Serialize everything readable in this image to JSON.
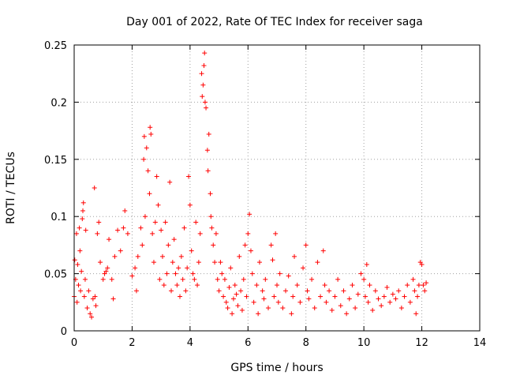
{
  "chart_data": {
    "type": "scatter",
    "title": "Day 001 of 2022, Rate Of TEC Index for receiver saga",
    "xlabel": "GPS time / hours",
    "ylabel": "ROTI / TECUs",
    "xlim": [
      0,
      14
    ],
    "ylim": [
      0,
      0.25
    ],
    "x_ticks": [
      0,
      2,
      4,
      6,
      8,
      10,
      12,
      14
    ],
    "x_tick_labels": [
      "0",
      "2",
      "4",
      "6",
      "8",
      "10",
      "12",
      "14"
    ],
    "y_ticks": [
      0,
      0.05,
      0.1,
      0.15,
      0.2,
      0.25
    ],
    "y_tick_labels": [
      "0",
      "0.05",
      "0.1",
      "0.15",
      "0.2",
      "0.25"
    ],
    "grid": true,
    "marker": "+",
    "series": [
      {
        "name": "ROTI",
        "color": "#ff0000",
        "points": [
          [
            0.0,
            0.03
          ],
          [
            0.02,
            0.062
          ],
          [
            0.05,
            0.045
          ],
          [
            0.08,
            0.085
          ],
          [
            0.1,
            0.025
          ],
          [
            0.12,
            0.058
          ],
          [
            0.15,
            0.04
          ],
          [
            0.18,
            0.09
          ],
          [
            0.2,
            0.07
          ],
          [
            0.22,
            0.035
          ],
          [
            0.25,
            0.052
          ],
          [
            0.28,
            0.098
          ],
          [
            0.3,
            0.105
          ],
          [
            0.32,
            0.112
          ],
          [
            0.35,
            0.03
          ],
          [
            0.38,
            0.045
          ],
          [
            0.4,
            0.088
          ],
          [
            0.45,
            0.02
          ],
          [
            0.5,
            0.035
          ],
          [
            0.55,
            0.015
          ],
          [
            0.6,
            0.012
          ],
          [
            0.65,
            0.028
          ],
          [
            0.7,
            0.125
          ],
          [
            0.72,
            0.03
          ],
          [
            0.75,
            0.022
          ],
          [
            0.8,
            0.085
          ],
          [
            0.85,
            0.095
          ],
          [
            0.9,
            0.06
          ],
          [
            1.0,
            0.045
          ],
          [
            1.05,
            0.05
          ],
          [
            1.1,
            0.052
          ],
          [
            1.15,
            0.055
          ],
          [
            1.2,
            0.08
          ],
          [
            1.3,
            0.045
          ],
          [
            1.35,
            0.028
          ],
          [
            1.4,
            0.065
          ],
          [
            1.5,
            0.088
          ],
          [
            1.6,
            0.07
          ],
          [
            1.7,
            0.09
          ],
          [
            1.75,
            0.105
          ],
          [
            1.85,
            0.085
          ],
          [
            2.0,
            0.048
          ],
          [
            2.1,
            0.055
          ],
          [
            2.15,
            0.035
          ],
          [
            2.2,
            0.065
          ],
          [
            2.3,
            0.09
          ],
          [
            2.35,
            0.075
          ],
          [
            2.4,
            0.15
          ],
          [
            2.42,
            0.17
          ],
          [
            2.45,
            0.1
          ],
          [
            2.5,
            0.16
          ],
          [
            2.55,
            0.14
          ],
          [
            2.6,
            0.12
          ],
          [
            2.62,
            0.178
          ],
          [
            2.65,
            0.172
          ],
          [
            2.7,
            0.085
          ],
          [
            2.75,
            0.06
          ],
          [
            2.8,
            0.095
          ],
          [
            2.85,
            0.135
          ],
          [
            2.9,
            0.11
          ],
          [
            2.95,
            0.045
          ],
          [
            3.0,
            0.088
          ],
          [
            3.05,
            0.065
          ],
          [
            3.1,
            0.04
          ],
          [
            3.15,
            0.095
          ],
          [
            3.2,
            0.05
          ],
          [
            3.25,
            0.075
          ],
          [
            3.3,
            0.13
          ],
          [
            3.35,
            0.035
          ],
          [
            3.4,
            0.06
          ],
          [
            3.45,
            0.08
          ],
          [
            3.5,
            0.05
          ],
          [
            3.55,
            0.04
          ],
          [
            3.6,
            0.055
          ],
          [
            3.65,
            0.03
          ],
          [
            3.7,
            0.065
          ],
          [
            3.75,
            0.045
          ],
          [
            3.8,
            0.09
          ],
          [
            3.85,
            0.035
          ],
          [
            3.9,
            0.055
          ],
          [
            3.95,
            0.135
          ],
          [
            4.0,
            0.11
          ],
          [
            4.05,
            0.07
          ],
          [
            4.1,
            0.05
          ],
          [
            4.15,
            0.045
          ],
          [
            4.2,
            0.095
          ],
          [
            4.25,
            0.04
          ],
          [
            4.3,
            0.06
          ],
          [
            4.35,
            0.085
          ],
          [
            4.4,
            0.225
          ],
          [
            4.42,
            0.205
          ],
          [
            4.45,
            0.215
          ],
          [
            4.48,
            0.232
          ],
          [
            4.5,
            0.243
          ],
          [
            4.52,
            0.2
          ],
          [
            4.55,
            0.195
          ],
          [
            4.6,
            0.158
          ],
          [
            4.62,
            0.14
          ],
          [
            4.65,
            0.172
          ],
          [
            4.7,
            0.12
          ],
          [
            4.72,
            0.1
          ],
          [
            4.75,
            0.09
          ],
          [
            4.8,
            0.075
          ],
          [
            4.85,
            0.06
          ],
          [
            4.9,
            0.085
          ],
          [
            4.95,
            0.045
          ],
          [
            5.0,
            0.035
          ],
          [
            5.05,
            0.06
          ],
          [
            5.1,
            0.05
          ],
          [
            5.15,
            0.03
          ],
          [
            5.2,
            0.045
          ],
          [
            5.25,
            0.025
          ],
          [
            5.3,
            0.02
          ],
          [
            5.35,
            0.038
          ],
          [
            5.4,
            0.055
          ],
          [
            5.45,
            0.015
          ],
          [
            5.5,
            0.028
          ],
          [
            5.55,
            0.04
          ],
          [
            5.6,
            0.032
          ],
          [
            5.65,
            0.022
          ],
          [
            5.7,
            0.065
          ],
          [
            5.75,
            0.035
          ],
          [
            5.8,
            0.018
          ],
          [
            5.85,
            0.045
          ],
          [
            5.9,
            0.075
          ],
          [
            5.95,
            0.03
          ],
          [
            6.0,
            0.085
          ],
          [
            6.05,
            0.102
          ],
          [
            6.1,
            0.07
          ],
          [
            6.15,
            0.05
          ],
          [
            6.2,
            0.025
          ],
          [
            6.3,
            0.04
          ],
          [
            6.35,
            0.015
          ],
          [
            6.4,
            0.06
          ],
          [
            6.5,
            0.035
          ],
          [
            6.55,
            0.028
          ],
          [
            6.6,
            0.045
          ],
          [
            6.7,
            0.02
          ],
          [
            6.8,
            0.075
          ],
          [
            6.85,
            0.062
          ],
          [
            6.9,
            0.03
          ],
          [
            6.95,
            0.085
          ],
          [
            7.0,
            0.04
          ],
          [
            7.05,
            0.025
          ],
          [
            7.1,
            0.05
          ],
          [
            7.2,
            0.02
          ],
          [
            7.3,
            0.035
          ],
          [
            7.4,
            0.048
          ],
          [
            7.5,
            0.015
          ],
          [
            7.55,
            0.03
          ],
          [
            7.6,
            0.065
          ],
          [
            7.7,
            0.04
          ],
          [
            7.8,
            0.025
          ],
          [
            7.9,
            0.055
          ],
          [
            8.0,
            0.075
          ],
          [
            8.05,
            0.035
          ],
          [
            8.1,
            0.028
          ],
          [
            8.2,
            0.045
          ],
          [
            8.3,
            0.02
          ],
          [
            8.4,
            0.06
          ],
          [
            8.5,
            0.03
          ],
          [
            8.6,
            0.07
          ],
          [
            8.65,
            0.04
          ],
          [
            8.7,
            0.025
          ],
          [
            8.8,
            0.035
          ],
          [
            8.9,
            0.018
          ],
          [
            9.0,
            0.03
          ],
          [
            9.1,
            0.045
          ],
          [
            9.2,
            0.022
          ],
          [
            9.3,
            0.035
          ],
          [
            9.4,
            0.015
          ],
          [
            9.5,
            0.028
          ],
          [
            9.6,
            0.04
          ],
          [
            9.7,
            0.02
          ],
          [
            9.8,
            0.032
          ],
          [
            9.9,
            0.05
          ],
          [
            10.0,
            0.045
          ],
          [
            10.05,
            0.03
          ],
          [
            10.1,
            0.058
          ],
          [
            10.15,
            0.025
          ],
          [
            10.2,
            0.04
          ],
          [
            10.3,
            0.018
          ],
          [
            10.4,
            0.035
          ],
          [
            10.5,
            0.028
          ],
          [
            10.6,
            0.022
          ],
          [
            10.7,
            0.03
          ],
          [
            10.8,
            0.038
          ],
          [
            10.9,
            0.025
          ],
          [
            11.0,
            0.032
          ],
          [
            11.1,
            0.028
          ],
          [
            11.2,
            0.035
          ],
          [
            11.3,
            0.02
          ],
          [
            11.4,
            0.03
          ],
          [
            11.5,
            0.04
          ],
          [
            11.6,
            0.025
          ],
          [
            11.7,
            0.045
          ],
          [
            11.75,
            0.035
          ],
          [
            11.8,
            0.015
          ],
          [
            11.85,
            0.03
          ],
          [
            11.9,
            0.04
          ],
          [
            11.95,
            0.06
          ],
          [
            12.0,
            0.058
          ],
          [
            12.05,
            0.04
          ],
          [
            12.1,
            0.035
          ],
          [
            12.15,
            0.042
          ]
        ]
      }
    ]
  }
}
